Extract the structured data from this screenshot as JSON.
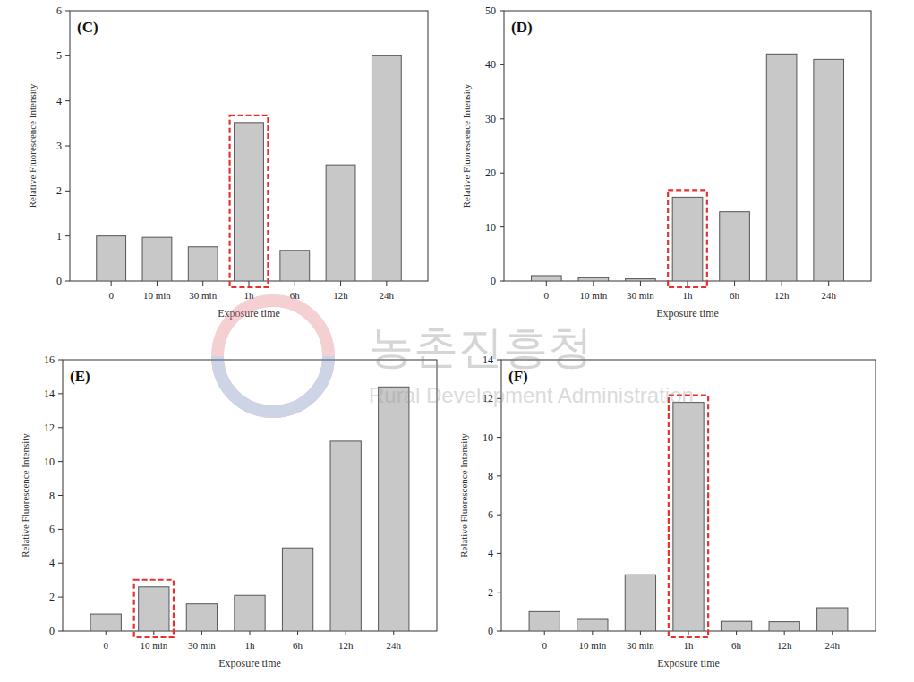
{
  "chart_data": [
    {
      "type": "bar",
      "title": "(C)",
      "x_label": "Exposure time",
      "y_label": "Relative Fluorescence Intensity",
      "categories": [
        "0",
        "10 min",
        "30 min",
        "1h",
        "6h",
        "12h",
        "24h"
      ],
      "values": [
        1.0,
        0.97,
        0.76,
        3.52,
        0.68,
        2.58,
        5.0
      ],
      "color": "#c8c8c8",
      "ylim": [
        0,
        6
      ],
      "yticks": [
        0,
        1,
        2,
        3,
        4,
        5,
        6
      ],
      "annotations": [
        {
          "type": "box",
          "category": "1h",
          "color": "#e8312f"
        }
      ]
    },
    {
      "type": "bar",
      "title": "(D)",
      "x_label": "Exposure time",
      "y_label": "Relative Fluorescence Intensity",
      "categories": [
        "0",
        "10 min",
        "30 min",
        "1h",
        "6h",
        "12h",
        "24h"
      ],
      "values": [
        1.0,
        0.6,
        0.4,
        15.5,
        12.8,
        42,
        41
      ],
      "color": "#c8c8c8",
      "ylim": [
        0,
        50
      ],
      "yticks": [
        0,
        10,
        20,
        30,
        40,
        50
      ],
      "annotations": [
        {
          "type": "box",
          "category": "1h",
          "color": "#e8312f"
        }
      ]
    },
    {
      "type": "bar",
      "title": "(E)",
      "x_label": "Exposure time",
      "y_label": "Relative Fluorescence Intensity",
      "categories": [
        "0",
        "10 min",
        "30 min",
        "1h",
        "6h",
        "12h",
        "24h"
      ],
      "values": [
        1.0,
        2.6,
        1.6,
        2.1,
        4.9,
        11.2,
        14.4
      ],
      "color": "#c8c8c8",
      "ylim": [
        0,
        16
      ],
      "yticks": [
        0,
        2,
        4,
        6,
        8,
        10,
        12,
        14,
        16
      ],
      "annotations": [
        {
          "type": "box",
          "category": "10 min",
          "color": "#e8312f"
        }
      ]
    },
    {
      "type": "bar",
      "title": "(F)",
      "x_label": "Exposure time",
      "y_label": "Relative Fluorescence Intensity",
      "categories": [
        "0",
        "10 min",
        "30 min",
        "1h",
        "6h",
        "12h",
        "24h"
      ],
      "values": [
        1.0,
        0.6,
        2.9,
        11.8,
        0.5,
        0.48,
        1.2
      ],
      "color": "#c8c8c8",
      "ylim": [
        0,
        14
      ],
      "yticks": [
        0,
        2,
        4,
        6,
        8,
        10,
        12,
        14
      ],
      "annotations": [
        {
          "type": "box",
          "category": "1h",
          "color": "#e8312f"
        }
      ]
    }
  ],
  "watermark": {
    "text": "농촌진흥청",
    "subtitle": "Rural Development Administration"
  }
}
